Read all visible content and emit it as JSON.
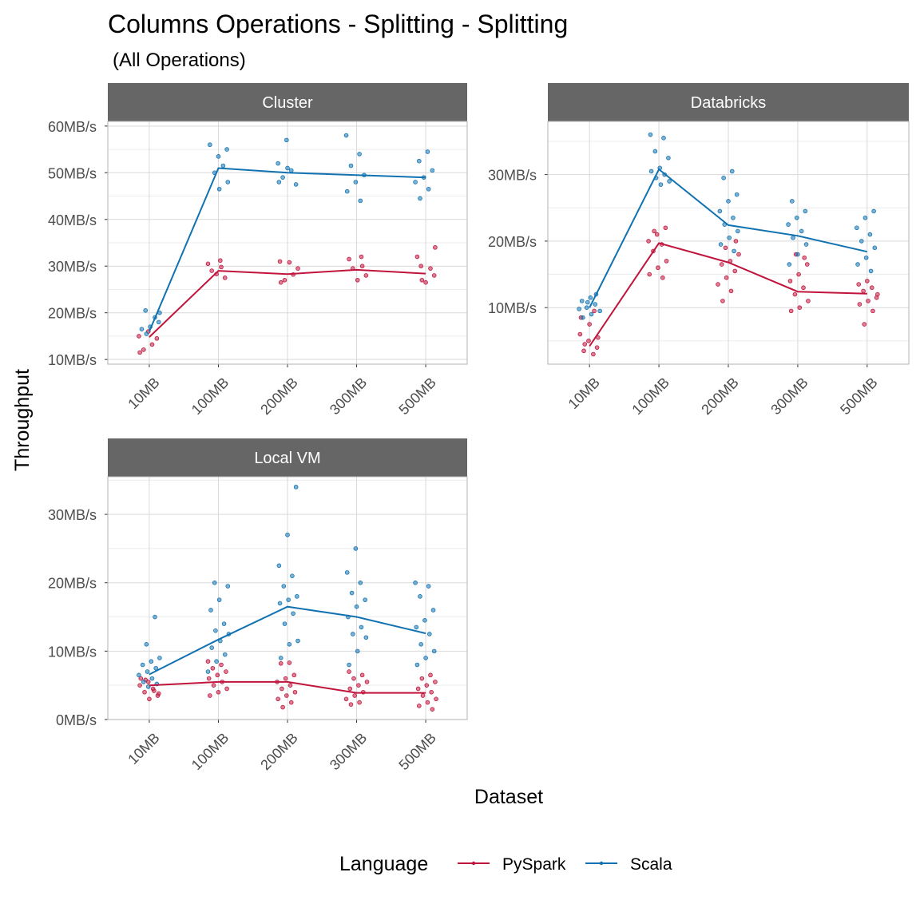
{
  "title": "Columns Operations - Splitting - Splitting",
  "subtitle": "(All Operations)",
  "xlabel": "Dataset",
  "ylabel": "Throughput",
  "legend": {
    "title": "Language",
    "placement": "bottom"
  },
  "colors": {
    "PySpark": "#c0143c",
    "Scala": "#1072b0",
    "strip_bg": "#666666",
    "grid": "#d9d9d9",
    "panel_border": "#b3b3b3"
  },
  "chart_data": [
    {
      "type": "line",
      "panel": "Cluster",
      "categories": [
        "10MB",
        "100MB",
        "200MB",
        "300MB",
        "500MB"
      ],
      "ylim": [
        9,
        61
      ],
      "yticks": [
        10,
        20,
        30,
        40,
        50,
        60
      ],
      "ytick_labels": [
        "10MB/s",
        "20MB/s",
        "30MB/s",
        "40MB/s",
        "50MB/s",
        "60MB/s"
      ],
      "grid": true,
      "series": [
        {
          "name": "PySpark",
          "values": [
            14.8,
            29.0,
            28.3,
            29.2,
            28.4
          ],
          "points": [
            [
              15.0,
              13.2,
              12.1,
              14.5,
              16.0,
              11.5
            ],
            [
              31.2,
              29.0,
              27.5,
              28.3,
              30.5,
              29.8
            ],
            [
              31.0,
              28.2,
              27.0,
              29.5,
              30.8,
              26.5
            ],
            [
              32.0,
              29.5,
              28.0,
              27.0,
              31.5,
              30.0
            ],
            [
              30.0,
              28.0,
              26.5,
              32.0,
              29.5,
              27.0,
              34.0
            ]
          ]
        },
        {
          "name": "Scala",
          "values": [
            16.0,
            51.0,
            50.0,
            49.5,
            49.0
          ],
          "points": [
            [
              20.5,
              18.0,
              17.0,
              16.5,
              19.0,
              15.5,
              20.0
            ],
            [
              55.0,
              53.5,
              56.0,
              51.5,
              50.0,
              48.0,
              46.5
            ],
            [
              57.0,
              52.0,
              50.5,
              49.0,
              47.5,
              51.0,
              48.0
            ],
            [
              58.0,
              54.0,
              51.5,
              49.5,
              48.0,
              46.0,
              44.0
            ],
            [
              54.5,
              52.5,
              50.5,
              49.0,
              48.0,
              46.5,
              44.5
            ]
          ]
        }
      ]
    },
    {
      "type": "line",
      "panel": "Databricks",
      "categories": [
        "10MB",
        "100MB",
        "200MB",
        "300MB",
        "500MB"
      ],
      "ylim": [
        1.5,
        38
      ],
      "yticks": [
        10,
        20,
        30
      ],
      "ytick_labels": [
        "10MB/s",
        "20MB/s",
        "30MB/s"
      ],
      "grid": true,
      "series": [
        {
          "name": "PySpark",
          "values": [
            4.2,
            19.7,
            16.8,
            12.4,
            12.1
          ],
          "points": [
            [
              3.5,
              4.0,
              5.0,
              6.0,
              3.0,
              4.5,
              5.5,
              7.5,
              8.5,
              9.5
            ],
            [
              22.0,
              21.0,
              20.0,
              19.5,
              18.5,
              17.0,
              16.0,
              15.0,
              14.5,
              21.5
            ],
            [
              19.0,
              18.0,
              17.0,
              16.5,
              15.5,
              14.5,
              13.5,
              12.5,
              11.0,
              20.0
            ],
            [
              16.5,
              15.0,
              14.0,
              13.0,
              12.0,
              11.0,
              10.0,
              9.5,
              17.5,
              18.0
            ],
            [
              14.0,
              13.5,
              13.0,
              12.5,
              11.5,
              11.0,
              10.5,
              9.5,
              7.5,
              12.0
            ]
          ]
        },
        {
          "name": "Scala",
          "values": [
            10.0,
            30.8,
            22.4,
            20.8,
            18.4
          ],
          "points": [
            [
              11.5,
              11.0,
              10.5,
              10.0,
              9.5,
              9.0,
              8.5,
              12.0,
              10.8,
              9.8
            ],
            [
              36.0,
              35.5,
              33.5,
              32.5,
              31.0,
              30.5,
              30.0,
              29.5,
              29.0,
              28.5
            ],
            [
              30.5,
              29.5,
              27.0,
              26.0,
              24.5,
              23.5,
              22.5,
              21.5,
              20.5,
              19.5,
              18.5
            ],
            [
              26.0,
              24.5,
              23.5,
              22.5,
              21.5,
              20.5,
              19.5,
              18.0,
              16.5
            ],
            [
              24.5,
              23.5,
              22.0,
              21.0,
              20.0,
              19.0,
              17.5,
              16.5,
              15.5
            ]
          ]
        }
      ]
    },
    {
      "type": "line",
      "panel": "Local VM",
      "categories": [
        "10MB",
        "100MB",
        "200MB",
        "300MB",
        "500MB"
      ],
      "ylim": [
        0,
        35.5
      ],
      "yticks": [
        0,
        10,
        20,
        30
      ],
      "ytick_labels": [
        "0MB/s",
        "10MB/s",
        "20MB/s",
        "30MB/s"
      ],
      "grid": true,
      "series": [
        {
          "name": "PySpark",
          "values": [
            5.0,
            5.5,
            5.5,
            3.9,
            3.9
          ],
          "points": [
            [
              5.5,
              5.0,
              4.5,
              4.0,
              3.5,
              3.0,
              6.0,
              4.2,
              5.8,
              3.8
            ],
            [
              8.5,
              8.0,
              7.5,
              7.0,
              6.5,
              6.0,
              5.5,
              5.0,
              4.5,
              4.0,
              3.5
            ],
            [
              8.3,
              8.2,
              6.5,
              6.0,
              5.5,
              5.0,
              4.5,
              4.0,
              3.5,
              3.0,
              2.5,
              1.8
            ],
            [
              7.0,
              6.5,
              6.0,
              5.5,
              5.0,
              4.5,
              4.0,
              3.5,
              3.0,
              2.5,
              2.2
            ],
            [
              6.5,
              6.0,
              5.5,
              5.0,
              4.5,
              4.0,
              3.5,
              3.0,
              2.5,
              2.0,
              1.5
            ]
          ]
        },
        {
          "name": "Scala",
          "values": [
            6.6,
            11.7,
            16.5,
            15.0,
            12.6
          ],
          "points": [
            [
              15.0,
              11.0,
              9.0,
              8.5,
              8.0,
              7.5,
              7.0,
              6.5,
              6.0,
              5.5,
              5.2,
              4.8
            ],
            [
              20.0,
              19.5,
              17.5,
              16.0,
              14.0,
              13.0,
              12.5,
              11.5,
              10.5,
              9.5,
              8.5,
              7.0
            ],
            [
              34.0,
              27.0,
              22.5,
              21.0,
              19.5,
              18.0,
              17.5,
              17.0,
              15.5,
              14.0,
              11.5,
              11.0,
              9.0
            ],
            [
              25.0,
              21.5,
              20.0,
              18.5,
              17.5,
              16.5,
              15.0,
              13.5,
              12.5,
              12.0,
              10.0,
              8.0
            ],
            [
              20.0,
              19.5,
              18.0,
              16.0,
              14.5,
              13.5,
              12.5,
              11.0,
              10.0,
              9.0,
              8.0
            ]
          ]
        }
      ]
    }
  ]
}
